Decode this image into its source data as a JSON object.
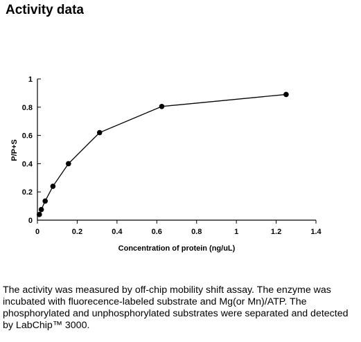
{
  "page": {
    "title": "Activity data",
    "description": "The activity was measured by off-chip mobility shift assay. The enzyme was incubated with fluorecence-labeled  substrate and Mg(or Mn)/ATP. The phosphorylated and unphosphorylated substrates were separated and detected by LabChip™ 3000."
  },
  "chart_data": {
    "type": "line",
    "title": "",
    "xlabel": "Concentration of protein (ng/uL)",
    "ylabel": "P/P+S",
    "xlim": [
      0,
      1.4
    ],
    "ylim": [
      0,
      1
    ],
    "xticks": [
      0,
      0.2,
      0.4,
      0.6,
      0.8,
      1,
      1.2,
      1.4
    ],
    "xtick_labels": [
      "0",
      "0.2",
      "0.4",
      "0.6",
      "0.8",
      "1",
      "1.2",
      "1.4"
    ],
    "yticks": [
      0,
      0.2,
      0.4,
      0.6,
      0.8,
      1
    ],
    "ytick_labels": [
      "0",
      "0.2",
      "0.4",
      "0.6",
      "0.8",
      "1"
    ],
    "grid": false,
    "legend": "none",
    "series": [
      {
        "x": [
          0.0098,
          0.0195,
          0.039,
          0.078,
          0.156,
          0.3125,
          0.625,
          1.25
        ],
        "y": [
          0.04,
          0.075,
          0.135,
          0.24,
          0.4,
          0.62,
          0.805,
          0.89
        ],
        "color": "#000000",
        "marker": "circle"
      }
    ]
  }
}
